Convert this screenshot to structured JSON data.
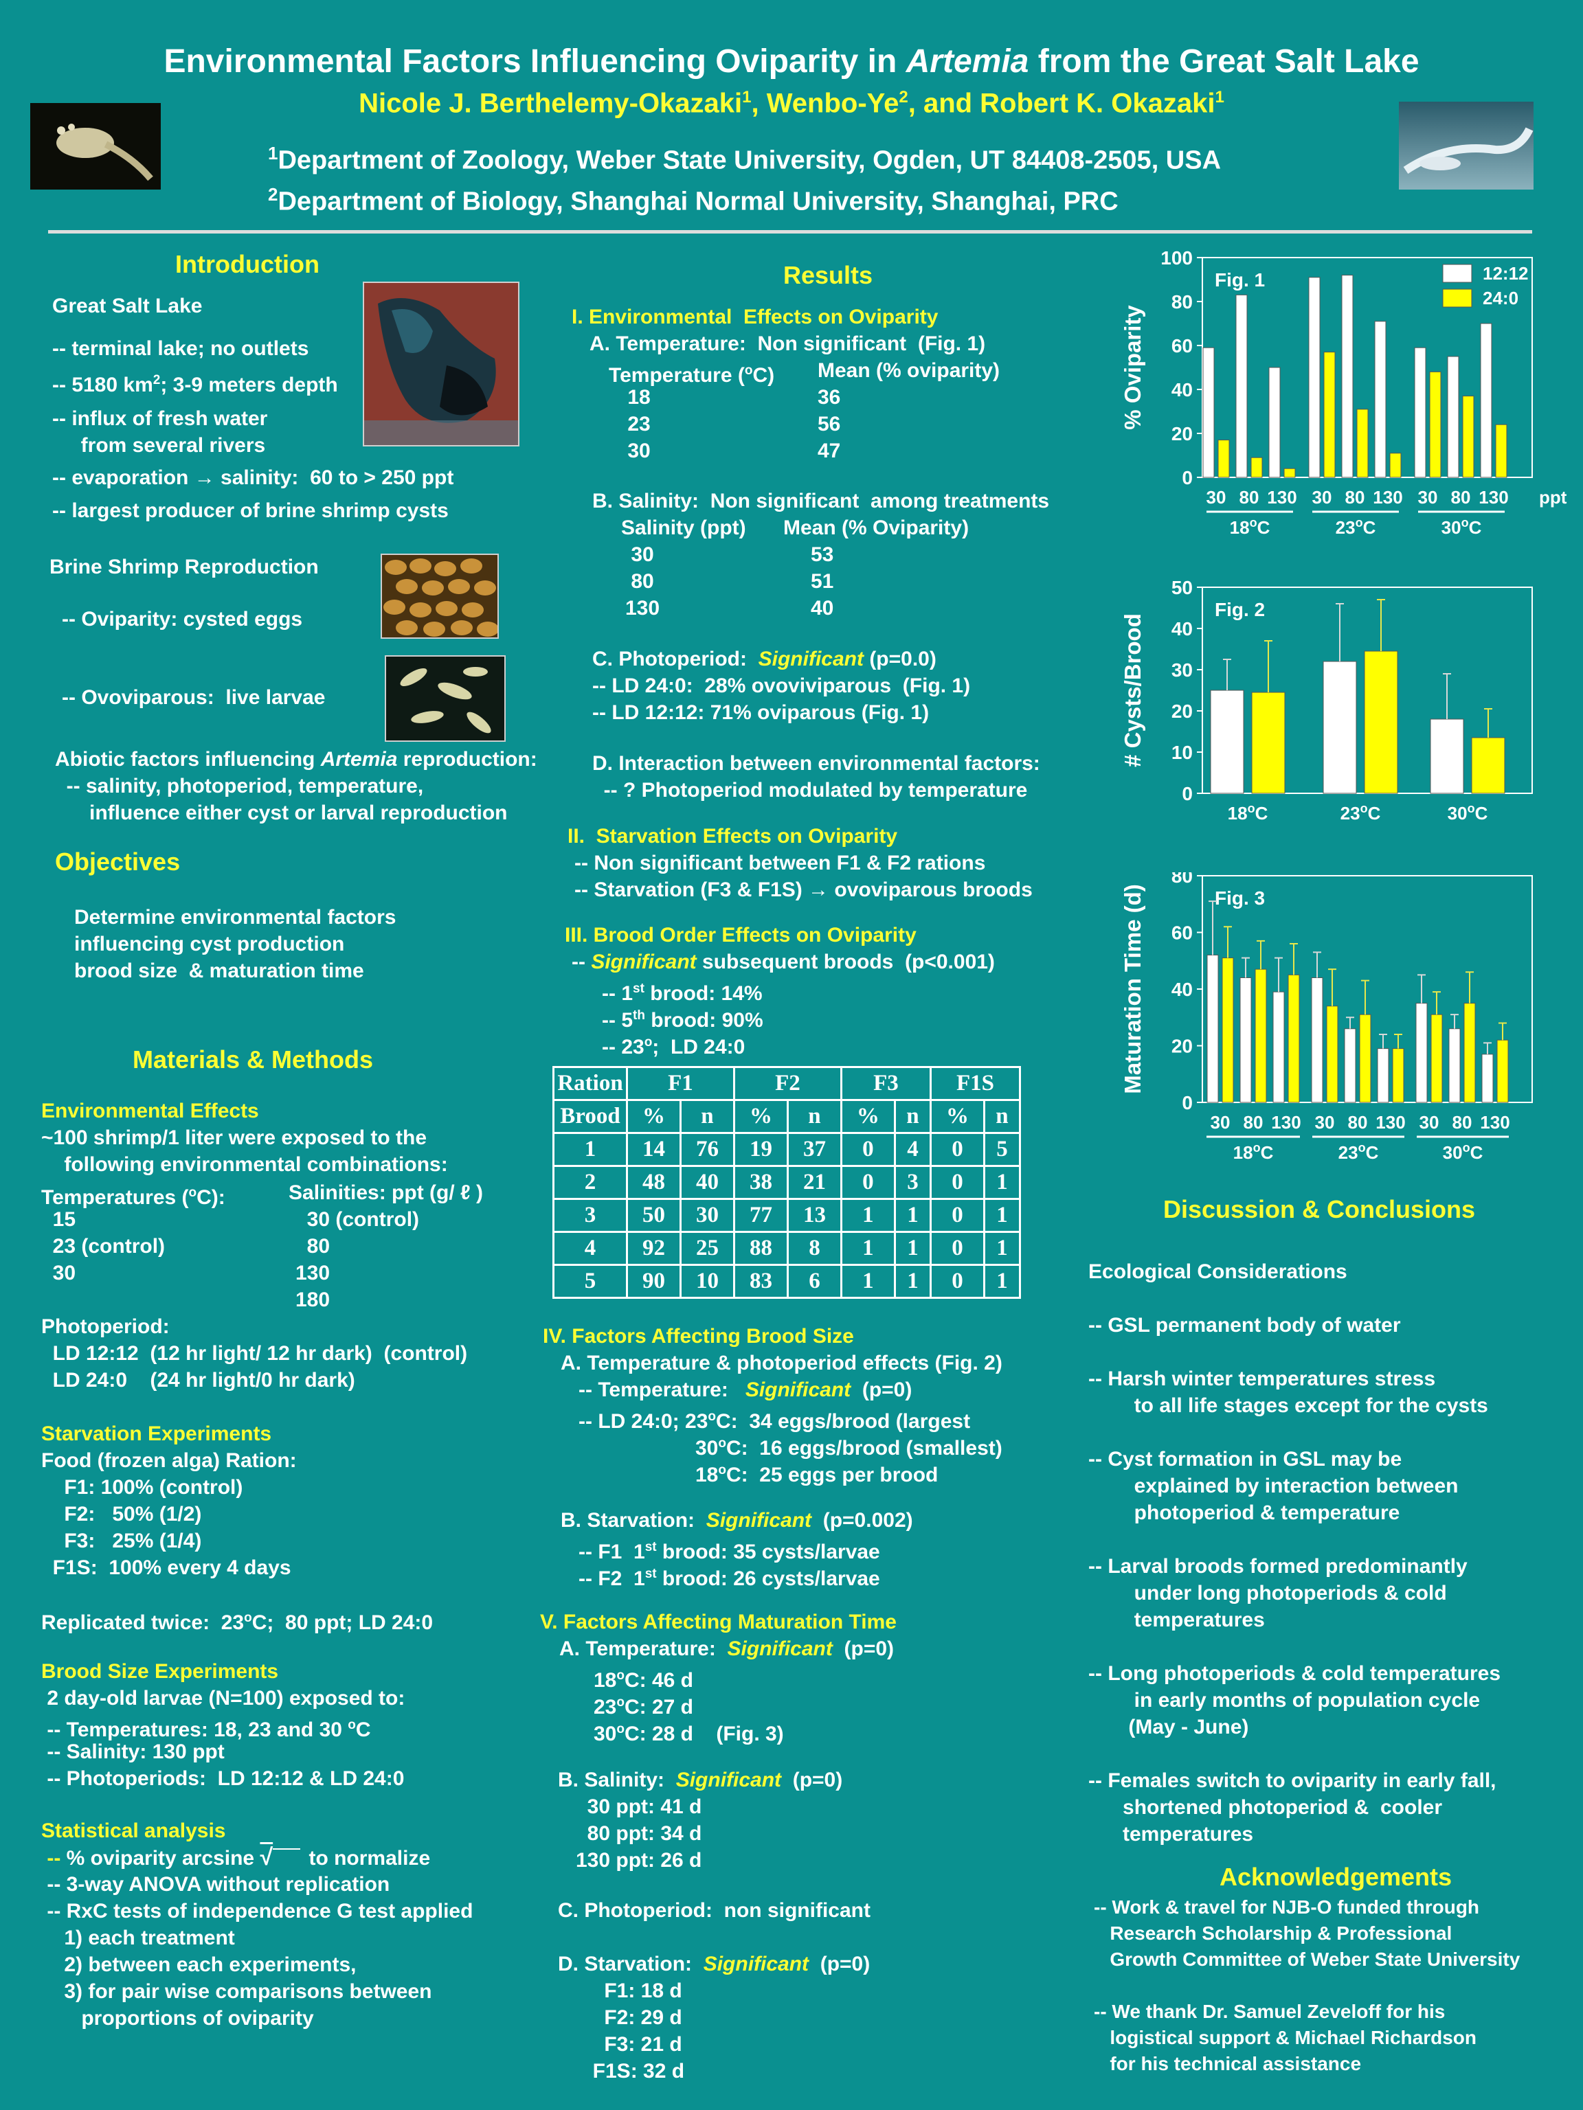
{
  "header": {
    "title_pre": "Environmental Factors Influencing Oviparity in ",
    "title_it": "Artemia",
    "title_post": " from the Great Salt Lake",
    "authors": [
      "Nicole J. Berthelemy-Okazaki",
      "1",
      ", Wenbo-Ye",
      "2",
      ", and Robert K. Okazaki",
      "1"
    ],
    "aff1_sup": "1",
    "aff1": "Department of Zoology, Weber State University, Ogden, UT  84408-2505, USA",
    "aff2_sup": "2",
    "aff2": "Department of Biology, Shanghai Normal University, Shanghai, PRC"
  },
  "intro": {
    "heading": "Introduction",
    "gsl_heading": "Great Salt Lake",
    "l1": "-- terminal lake; no outlets",
    "l2a": "-- 5180 km",
    "l2sup": "2",
    "l2b": "; 3-9 meters depth",
    "l3": "-- influx of fresh water\n     from several rivers",
    "l4a": "-- evaporation ",
    "l4arrow": "→",
    "l4b": " salinity:  60 to > 250 ppt",
    "l5": "-- largest producer of brine shrimp cysts",
    "repro_heading": "Brine Shrimp Reproduction",
    "ovip": "-- Oviparity: cysted eggs",
    "ovov": "-- Ovoviparous:  live larvae",
    "abiotic_a": "Abiotic factors influencing ",
    "abiotic_it": "Artemia",
    "abiotic_b": " reproduction:",
    "abiotic_l": "  -- salinity, photoperiod, temperature,\n      influence either cyst or larval reproduction"
  },
  "objectives": {
    "heading": "Objectives",
    "text": "Determine environmental factors\ninfluencing cyst production\nbrood size  & maturation time"
  },
  "methods": {
    "heading": "Materials & Methods",
    "env_heading": "Environmental Effects",
    "env_text": "~100 shrimp/1 liter were exposed to the\n    following environmental combinations:",
    "temp_head_a": "Temperatures (",
    "temp_sup": "o",
    "temp_head_b": "C):",
    "temps": "  15\n  23 (control)\n  30",
    "sal_head": "Salinities: ppt (g/ ℓ )",
    "sals": "  30 (control)\n  80\n130\n180",
    "photo": "Photoperiod:\n  LD 12:12  (12 hr light/ 12 hr dark)  (control)\n  LD 24:0    (24 hr light/0 hr dark)",
    "starv_heading": "Starvation Experiments",
    "starv_text": "Food (frozen alga) Ration:\n    F1: 100% (control)\n    F2:   50% (1/2)\n    F3:   25% (1/4)\n  F1S:  100% every 4 days",
    "rep_a": "Replicated twice:  23",
    "rep_sup": "o",
    "rep_b": "C;  80 ppt; LD 24:0",
    "brood_heading": "Brood Size Experiments",
    "brood_text": " 2 day-old larvae (N=100) exposed to:\n -- Temperatures: 18, 23 and 30 ",
    "brood_sup": "o",
    "brood_c": "C",
    "brood_text2": " -- Salinity: 130 ppt\n -- Photoperiods:  LD 12:12 & LD 24:0",
    "stat_heading": "Statistical analysis",
    "stat_a": " -- ",
    "stat_b": "% oviparity arcsine ",
    "sqrt": "√",
    "stat_c": " to normalize",
    "stat_text": " -- 3-way ANOVA without replication\n -- RxC tests of independence G test applied\n    1) each treatment\n    2) between each experiments,\n    3) for pair wise comparisons between\n       proportions of oviparity"
  },
  "results": {
    "heading": "Results",
    "s1": "I. Environmental  Effects on Oviparity",
    "s1a": "A. Temperature:  Non significant  (Fig. 1)",
    "s1a_h1": "Temperature (",
    "s1a_sup": "o",
    "s1a_h2": "C)",
    "s1a_h3": "Mean (% oviparity)",
    "temp_rows": [
      [
        "18",
        "36"
      ],
      [
        "23",
        "56"
      ],
      [
        "30",
        "47"
      ]
    ],
    "s1b": "B. Salinity:  Non significant  among treatments",
    "s1b_h1": "Salinity (ppt)",
    "s1b_h2": "Mean (% Oviparity)",
    "sal_rows": [
      [
        "30",
        "53"
      ],
      [
        "80",
        "51"
      ],
      [
        "130",
        "40"
      ]
    ],
    "s1c_a": "C. Photoperiod:  ",
    "sig": "Significant",
    "s1c_b": " (p=0.0)",
    "s1c_l": "-- LD 24:0:  28% ovoviviparous  (Fig. 1)\n-- LD 12:12: 71% oviparous (Fig. 1)",
    "s1d": "D. Interaction between environmental factors:\n  -- ? Photoperiod modulated by temperature",
    "s2": "II.  Starvation Effects on Oviparity",
    "s2_l": "-- Non significant between F1 & F2 rations\n-- Starvation (F3 & F1S) ",
    "arrow": "→",
    "s2_l2": " ovoviparous broods",
    "s3": "III. Brood Order Effects on Oviparity",
    "s3_a": "-- ",
    "s3_b": " subsequent broods  (p<0.001)",
    "s3_l1a": "-- 1",
    "s3_l1sup": "st",
    "s3_l1b": " brood: 14%",
    "s3_l2a": "-- 5",
    "s3_l2sup": "th",
    "s3_l2b": " brood: 90%",
    "s3_l3a": "-- 23",
    "s3_l3sup": "o",
    "s3_l3b": ";  LD 24:0",
    "table_groups": [
      "Ration",
      "F1",
      "F2",
      "F3",
      "F1S"
    ],
    "table_sub": [
      "Brood",
      "%",
      "n",
      "%",
      "n",
      "%",
      "n",
      "%",
      "n"
    ],
    "table_rows": [
      [
        "1",
        "14",
        "76",
        "19",
        "37",
        "0",
        "4",
        "0",
        "5"
      ],
      [
        "2",
        "48",
        "40",
        "38",
        "21",
        "0",
        "3",
        "0",
        "1"
      ],
      [
        "3",
        "50",
        "30",
        "77",
        "13",
        "1",
        "1",
        "0",
        "1"
      ],
      [
        "4",
        "92",
        "25",
        "88",
        "8",
        "1",
        "1",
        "0",
        "1"
      ],
      [
        "5",
        "90",
        "10",
        "83",
        "6",
        "1",
        "1",
        "0",
        "1"
      ]
    ],
    "s4": "IV. Factors Affecting Brood Size",
    "s4a": "A. Temperature & photoperiod effects (Fig. 2)",
    "s4a_t": "-- Temperature:   ",
    "s4a_p": "  (p=0)",
    "s4a_l1a": "-- LD 24:0; 23",
    "s4a_l1sup": "o",
    "s4a_l1b": "C:  34 eggs/brood (largest",
    "s4a_l2a": "30",
    "s4a_l2sup": "o",
    "s4a_l2b": "C:  16 eggs/brood (smallest)",
    "s4a_l3a": "18",
    "s4a_l3sup": "o",
    "s4a_l3b": "C:  25 eggs per brood",
    "s4b_a": "B. Starvation:  ",
    "s4b_b": "  (p=0.002)",
    "s4b_l1a": "-- F1  1",
    "s4b_l1sup": "st",
    "s4b_l1b": " brood: 35 cysts/larvae",
    "s4b_l2a": "-- F2  1",
    "s4b_l2sup": "st",
    "s4b_l2b": " brood: 26 cysts/larvae",
    "s5": "V. Factors Affecting Maturation Time",
    "s5a_a": "A. Temperature:  ",
    "s5a_b": "  (p=0)",
    "s5a_l1a": "18",
    "s5a_l1sup": "o",
    "s5a_l1b": "C: 46 d",
    "s5a_l2a": "23",
    "s5a_l2sup": "o",
    "s5a_l2b": "C: 27 d",
    "s5a_l3a": "30",
    "s5a_l3sup": "o",
    "s5a_l3b": "C: 28 d    (Fig. 3)",
    "s5b_a": "B. Salinity:  ",
    "s5b_b": "  (p=0)",
    "s5b_l": "  30 ppt: 41 d\n  80 ppt: 34 d\n130 ppt: 26 d",
    "s5c": "C. Photoperiod:  non significant",
    "s5d_a": "D. Starvation:  ",
    "s5d_b": "  (p=0)",
    "s5d_l": "    F1: 18 d\n    F2: 29 d\n    F3: 21 d\n  F1S: 32 d"
  },
  "discussion": {
    "heading": "Discussion & Conclusions",
    "text": "Ecological Considerations\n\n-- GSL permanent body of water\n\n-- Harsh winter temperatures stress\n        to all life stages except for the cysts\n\n-- Cyst formation in GSL may be\n        explained by interaction between\n        photoperiod & temperature\n\n-- Larval broods formed predominantly\n        under long photoperiods & cold\n        temperatures\n\n-- Long photoperiods & cold temperatures\n        in early months of population cycle\n       (May - June)\n\n-- Females switch to oviparity in early fall,\n      shortened photoperiod &  cooler\n      temperatures"
  },
  "ack": {
    "heading": "Acknowledgements",
    "text": "-- Work & travel for NJB-O funded through\n   Research Scholarship & Professional\n   Growth Committee of Weber State University\n\n-- We thank Dr. Samuel Zeveloff for his\n   logistical support & Michael Richardson\n   for his technical assistance"
  },
  "colors": {
    "bg": "#0a9090",
    "accent": "#ffff33",
    "white": "#ffffff"
  },
  "chart_data": [
    {
      "type": "bar",
      "label": "Fig. 1",
      "ylabel": "% Oviparity",
      "ylim": [
        0,
        100
      ],
      "yticks": [
        0,
        20,
        40,
        60,
        80,
        100
      ],
      "categories": [
        "30",
        "80",
        "130",
        "30",
        "80",
        "130",
        "30",
        "80",
        "130"
      ],
      "unit": "ppt",
      "groups": [
        "18",
        "23",
        "30"
      ],
      "group_sup": "o",
      "group_unit": "C",
      "series": [
        {
          "name": "12:12",
          "color": "#ffffff",
          "values": [
            59,
            83,
            50,
            91,
            92,
            71,
            59,
            55,
            70
          ]
        },
        {
          "name": "24:0",
          "color": "#ffff00",
          "values": [
            17,
            9,
            4,
            57,
            31,
            11,
            48,
            37,
            24
          ]
        }
      ],
      "legend": "top-right"
    },
    {
      "type": "bar",
      "label": "Fig. 2",
      "ylabel": "# Cysts/Brood",
      "ylim": [
        0,
        50
      ],
      "yticks": [
        0,
        10,
        20,
        30,
        40,
        50
      ],
      "groups": [
        "18",
        "23",
        "30"
      ],
      "group_sup": "o",
      "group_unit": "C",
      "series": [
        {
          "color": "#ffffff",
          "values": [
            25,
            32,
            18
          ],
          "errors": [
            7.5,
            14,
            11
          ]
        },
        {
          "color": "#ffff00",
          "values": [
            24.5,
            34.5,
            13.5
          ],
          "errors": [
            12.5,
            12.5,
            7
          ]
        }
      ]
    },
    {
      "type": "bar",
      "label": "Fig. 3",
      "ylabel": "Maturation Time (d)",
      "ylim": [
        0,
        80
      ],
      "yticks": [
        0,
        20,
        40,
        60,
        80
      ],
      "categories": [
        "30",
        "80",
        "130",
        "30",
        "80",
        "130",
        "30",
        "80",
        "130"
      ],
      "groups": [
        "18",
        "23",
        "30"
      ],
      "group_sup": "o",
      "group_unit": "C",
      "series": [
        {
          "color": "#ffffff",
          "values": [
            52,
            44,
            39,
            44,
            26,
            19,
            35,
            26,
            17
          ],
          "errors": [
            19,
            7,
            12,
            9,
            4,
            5,
            10,
            5,
            4
          ]
        },
        {
          "color": "#ffff00",
          "values": [
            51,
            47,
            45,
            34,
            31,
            19,
            31,
            35,
            22
          ],
          "errors": [
            11,
            10,
            11,
            13,
            12,
            5,
            8,
            11,
            6
          ]
        }
      ]
    }
  ]
}
